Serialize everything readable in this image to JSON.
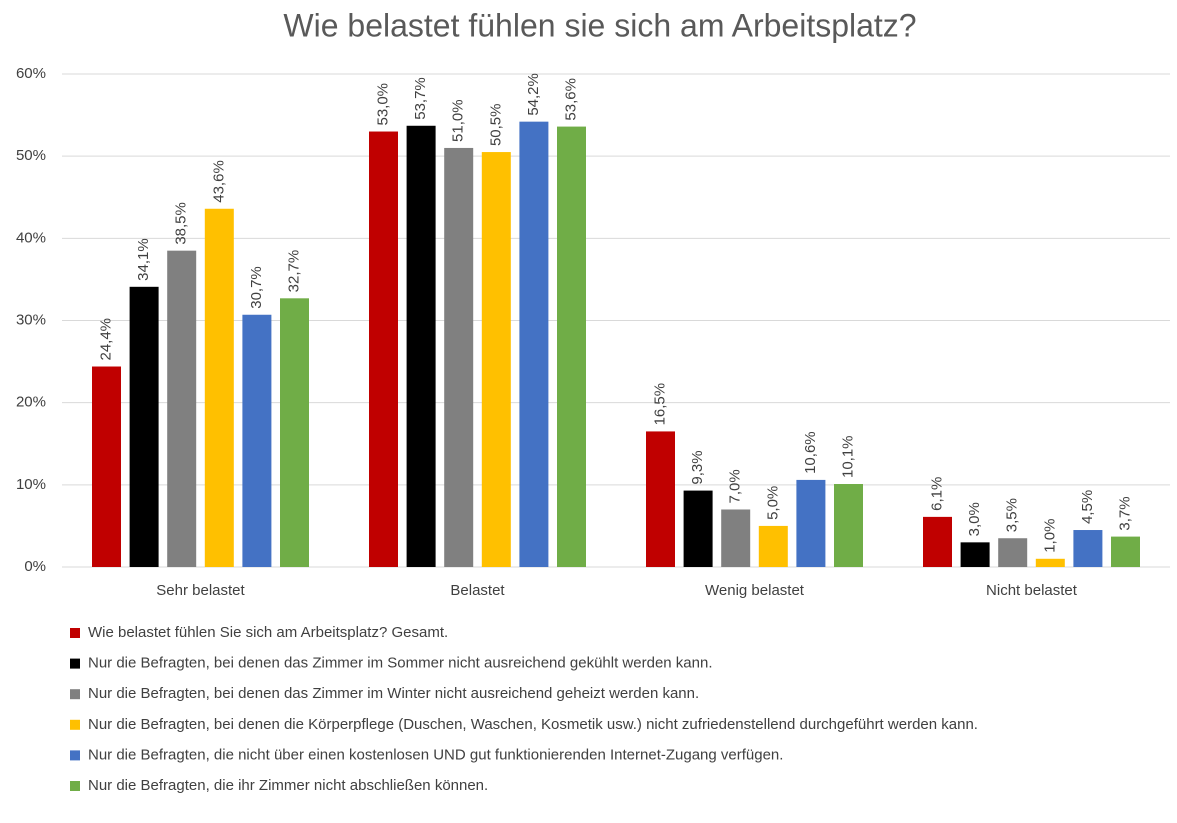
{
  "chart_data": {
    "type": "bar",
    "title": "Wie belastet fühlen sie sich am Arbeitsplatz?",
    "categories": [
      "Sehr belastet",
      "Belastet",
      "Wenig belastet",
      "Nicht belastet"
    ],
    "series": [
      {
        "name": "Wie belastet fühlen Sie sich am Arbeitsplatz? Gesamt.",
        "color": "#c00000",
        "values": [
          24.4,
          53.0,
          16.5,
          6.1
        ],
        "value_labels": [
          "24,4%",
          "53,0%",
          "16,5%",
          "6,1%"
        ]
      },
      {
        "name": "Nur die Befragten, bei denen das Zimmer im Sommer nicht ausreichend gekühlt werden kann.",
        "color": "#000000",
        "values": [
          34.1,
          53.7,
          9.3,
          3.0
        ],
        "value_labels": [
          "34,1%",
          "53,7%",
          "9,3%",
          "3,0%"
        ]
      },
      {
        "name": "Nur die Befragten, bei denen das Zimmer im Winter nicht ausreichend geheizt werden kann.",
        "color": "#808080",
        "values": [
          38.5,
          51.0,
          7.0,
          3.5
        ],
        "value_labels": [
          "38,5%",
          "51,0%",
          "7,0%",
          "3,5%"
        ]
      },
      {
        "name": "Nur die Befragten, bei denen die Körperpflege (Duschen, Waschen, Kosmetik usw.) nicht zufriedenstellend durchgeführt werden kann.",
        "color": "#ffc000",
        "values": [
          43.6,
          50.5,
          5.0,
          1.0
        ],
        "value_labels": [
          "43,6%",
          "50,5%",
          "5,0%",
          "1,0%"
        ]
      },
      {
        "name": "Nur die Befragten, die nicht über einen kostenlosen UND gut funktionierenden Internet-Zugang verfügen.",
        "color": "#4472c4",
        "values": [
          30.7,
          54.2,
          10.6,
          4.5
        ],
        "value_labels": [
          "30,7%",
          "54,2%",
          "10,6%",
          "4,5%"
        ]
      },
      {
        "name": "Nur die Befragten, die ihr Zimmer nicht abschließen können.",
        "color": "#70ad47",
        "values": [
          32.7,
          53.6,
          10.1,
          3.7
        ],
        "value_labels": [
          "32,7%",
          "53,6%",
          "10,1%",
          "3,7%"
        ]
      }
    ],
    "ylim": [
      0,
      60
    ],
    "yticks": [
      {
        "value": 0,
        "label": "0%"
      },
      {
        "value": 10,
        "label": "10%"
      },
      {
        "value": 20,
        "label": "20%"
      },
      {
        "value": 30,
        "label": "30%"
      },
      {
        "value": 40,
        "label": "40%"
      },
      {
        "value": 50,
        "label": "50%"
      },
      {
        "value": 60,
        "label": "60%"
      }
    ],
    "grid": true,
    "legend": "bottom"
  }
}
